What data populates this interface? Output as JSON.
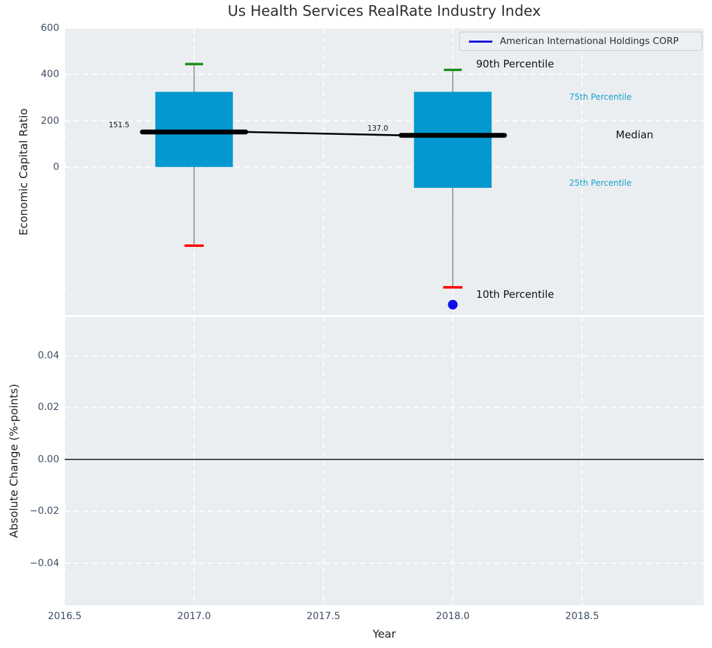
{
  "title": "Us Health Services RealRate Industry Index",
  "legend": {
    "label": "American International Holdings CORP",
    "line_color": "#0f0fd6"
  },
  "colors": {
    "axes_background": "#ebeef0",
    "grid": "#ffffff",
    "box_fill": "#0398cf",
    "median_line": "#000000",
    "whisker": "#808080",
    "p90_cap": "#158c15",
    "p10_cap": "#fb0000",
    "outlier_dot": "#0d0de8",
    "tick_label": "#3d4c63",
    "annotation_accent": "#149fce",
    "annotation_dark": "#111111"
  },
  "chart_data": [
    {
      "type": "bar",
      "subtype": "percentile-candles",
      "title": "Us Health Services RealRate Industry Index",
      "ylabel": "Economic Capital Ratio",
      "ylim": [
        -640,
        600
      ],
      "xlim": [
        2016.5,
        2018.97
      ],
      "grid": "white-dashed",
      "yticks": [
        {
          "value": 600,
          "label": "600"
        },
        {
          "value": 400,
          "label": "400"
        },
        {
          "value": 200,
          "label": "200"
        },
        {
          "value": 0,
          "label": "0"
        }
      ],
      "boxes": [
        {
          "x": 2017,
          "median": 151.5,
          "median_label": "151.5",
          "q3": 325,
          "q1": 0,
          "p90": 445,
          "p10": -340
        },
        {
          "x": 2018,
          "median": 137.0,
          "median_label": "137.0",
          "q3": 325,
          "q1": -90,
          "p90": 420,
          "p10": -520
        }
      ],
      "box_half_width": 0.15,
      "median_half_width": 0.2,
      "median_trend": [
        [
          2017.2,
          151.5
        ],
        [
          2017.8,
          137.0
        ]
      ],
      "outlier": {
        "x": 2018,
        "y": -595
      },
      "annotations": [
        {
          "id": "p90",
          "text": "90th Percentile",
          "x": 2018.09,
          "y": 445,
          "color": "#111111",
          "size": 15
        },
        {
          "id": "p75",
          "text": "75th Percentile",
          "x": 2018.45,
          "y": 303,
          "color": "#149fce",
          "size": 12
        },
        {
          "id": "median",
          "text": "Median",
          "x": 2018.63,
          "y": 139,
          "color": "#111111",
          "size": 15
        },
        {
          "id": "p25",
          "text": "25th Percentile",
          "x": 2018.45,
          "y": -69,
          "color": "#149fce",
          "size": 12
        },
        {
          "id": "p10",
          "text": "10th Percentile",
          "x": 2018.09,
          "y": -551,
          "color": "#111111",
          "size": 15
        }
      ]
    },
    {
      "type": "line",
      "ylabel": "Absolute Change (%-points)",
      "xlabel": "Year",
      "ylim": [
        -0.0562,
        0.0548
      ],
      "grid": "white-dashed",
      "yticks": [
        {
          "value": 0.04,
          "label": "0.04"
        },
        {
          "value": 0.02,
          "label": "0.02"
        },
        {
          "value": 0.0,
          "label": "0.00"
        },
        {
          "value": -0.02,
          "label": "−0.02"
        },
        {
          "value": -0.04,
          "label": "−0.04"
        }
      ],
      "zero_line": 0.0,
      "series": []
    }
  ],
  "x_axis": {
    "label": "Year",
    "ticks": [
      {
        "value": 2016.5,
        "label": "2016.5"
      },
      {
        "value": 2017.0,
        "label": "2017.0"
      },
      {
        "value": 2017.5,
        "label": "2017.5"
      },
      {
        "value": 2018.0,
        "label": "2018.0"
      },
      {
        "value": 2018.5,
        "label": "2018.5"
      }
    ]
  }
}
